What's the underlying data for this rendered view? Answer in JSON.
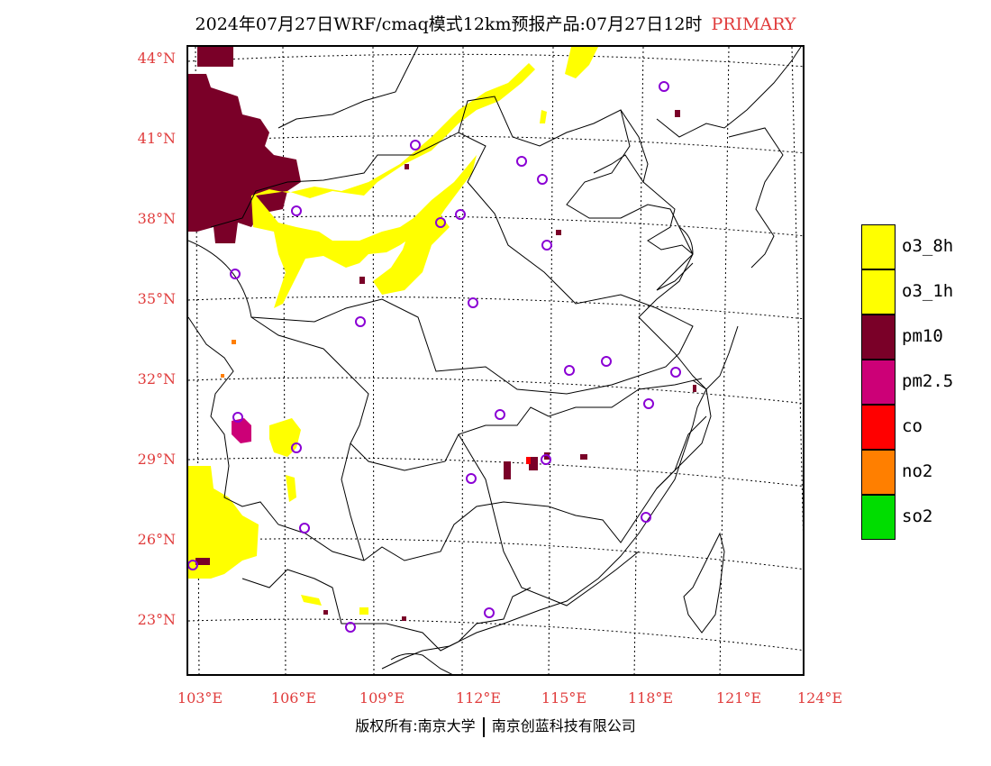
{
  "title": "2024年07月27日WRF/cmaq模式12km预报产品:07月27日12时",
  "primary_label": "PRIMARY",
  "y_ticks": [
    "44°N",
    "41°N",
    "38°N",
    "35°N",
    "32°N",
    "29°N",
    "26°N",
    "23°N"
  ],
  "x_ticks": [
    "103°E",
    "106°E",
    "109°E",
    "112°E",
    "115°E",
    "118°E",
    "121°E",
    "124°E"
  ],
  "footer": {
    "left": "版权所有:南京大学",
    "right": "南京创蓝科技有限公司"
  },
  "legend": [
    {
      "label": "o3_8h",
      "color": "#ffff00"
    },
    {
      "label": "o3_1h",
      "color": "#ffff00"
    },
    {
      "label": "pm10",
      "color": "#7a0028"
    },
    {
      "label": "pm2.5",
      "color": "#cc0077"
    },
    {
      "label": "co",
      "color": "#ff0000"
    },
    {
      "label": "no2",
      "color": "#ff7f00"
    },
    {
      "label": "so2",
      "color": "#00dd00"
    }
  ],
  "colors": {
    "axis_labels": "#e03c3c",
    "station_marker": "#8a00d4"
  }
}
